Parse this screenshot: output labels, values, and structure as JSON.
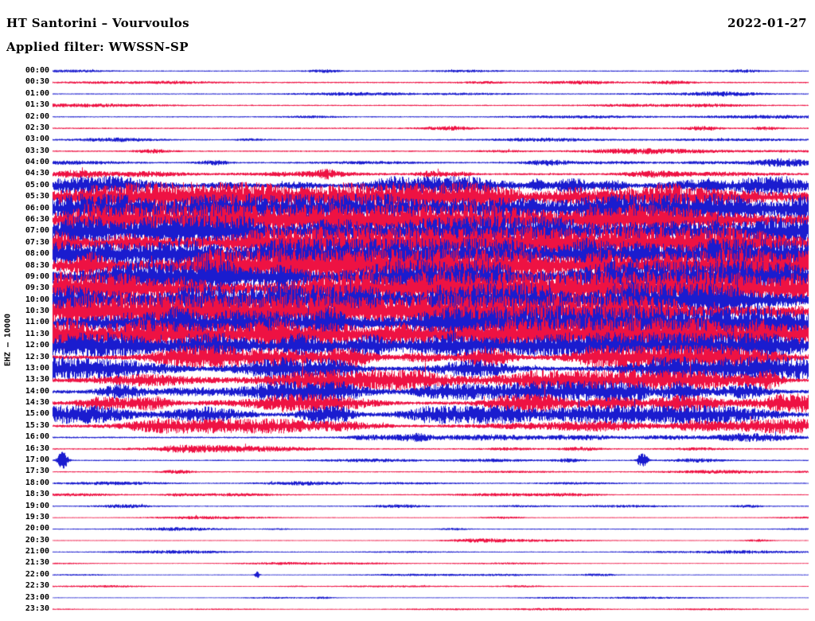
{
  "header": {
    "title": "HT Santorini – Vourvoulos",
    "date": "2022-01-27",
    "filter_label": "Applied filter: WWSSN-SP"
  },
  "y_axis_label": "EHZ – 10000",
  "colors": {
    "blue": "#1a1ccf",
    "red": "#ee1243",
    "background": "#ffffff",
    "text": "#000000"
  },
  "chart_data": {
    "type": "line",
    "subtype": "helicorder-seismogram",
    "title": "HT Santorini – Vourvoulos",
    "date": "2022-01-27",
    "filter": "WWSSN-SP",
    "y_axis_label": "EHZ – 10000",
    "row_interval_minutes": 30,
    "trace_colors_alternate": [
      "blue",
      "red"
    ],
    "amplitude_units": "relative peak half-amplitude (px), estimated from pixels",
    "rows": [
      {
        "t": "00:00",
        "c": "b",
        "a": 2.2
      },
      {
        "t": "00:30",
        "c": "r",
        "a": 2.8
      },
      {
        "t": "01:00",
        "c": "b",
        "a": 2.2
      },
      {
        "t": "01:30",
        "c": "r",
        "a": 2.4
      },
      {
        "t": "02:00",
        "c": "b",
        "a": 2.2
      },
      {
        "t": "02:30",
        "c": "r",
        "a": 2.8
      },
      {
        "t": "03:00",
        "c": "b",
        "a": 2.4
      },
      {
        "t": "03:30",
        "c": "r",
        "a": 2.8
      },
      {
        "t": "04:00",
        "c": "b",
        "a": 3.2
      },
      {
        "t": "04:30",
        "c": "r",
        "a": 4.5
      },
      {
        "t": "05:00",
        "c": "b",
        "a": 7,
        "ev": [
          [
            0.64,
            9,
            8
          ],
          [
            0.87,
            10,
            8
          ],
          [
            0.95,
            9,
            6
          ]
        ]
      },
      {
        "t": "05:30",
        "c": "r",
        "a": 11
      },
      {
        "t": "06:00",
        "c": "b",
        "a": 11
      },
      {
        "t": "06:30",
        "c": "r",
        "a": 12
      },
      {
        "t": "07:00",
        "c": "b",
        "a": 12
      },
      {
        "t": "07:30",
        "c": "r",
        "a": 12
      },
      {
        "t": "08:00",
        "c": "b",
        "a": 12
      },
      {
        "t": "08:30",
        "c": "r",
        "a": 13
      },
      {
        "t": "09:00",
        "c": "b",
        "a": 13
      },
      {
        "t": "09:30",
        "c": "r",
        "a": 13
      },
      {
        "t": "10:00",
        "c": "b",
        "a": 13
      },
      {
        "t": "10:30",
        "c": "r",
        "a": 13
      },
      {
        "t": "11:00",
        "c": "b",
        "a": 13
      },
      {
        "t": "11:30",
        "c": "r",
        "a": 13
      },
      {
        "t": "12:00",
        "c": "b",
        "a": 10
      },
      {
        "t": "12:30",
        "c": "r",
        "a": 9
      },
      {
        "t": "13:00",
        "c": "b",
        "a": 9
      },
      {
        "t": "13:30",
        "c": "r",
        "a": 8
      },
      {
        "t": "14:00",
        "c": "b",
        "a": 8
      },
      {
        "t": "14:30",
        "c": "r",
        "a": 7
      },
      {
        "t": "15:00",
        "c": "b",
        "a": 7
      },
      {
        "t": "15:30",
        "c": "r",
        "a": 5.5
      },
      {
        "t": "16:00",
        "c": "b",
        "a": 3.5
      },
      {
        "t": "16:30",
        "c": "r",
        "a": 3
      },
      {
        "t": "17:00",
        "c": "b",
        "a": 2.6,
        "ev": [
          [
            0.013,
            12,
            5
          ],
          [
            0.78,
            10,
            5
          ]
        ]
      },
      {
        "t": "17:30",
        "c": "r",
        "a": 2.2
      },
      {
        "t": "18:00",
        "c": "b",
        "a": 2.2
      },
      {
        "t": "18:30",
        "c": "r",
        "a": 1.8
      },
      {
        "t": "19:00",
        "c": "b",
        "a": 2.2
      },
      {
        "t": "19:30",
        "c": "r",
        "a": 1.4
      },
      {
        "t": "20:00",
        "c": "b",
        "a": 1.8
      },
      {
        "t": "20:30",
        "c": "r",
        "a": 1.4
      },
      {
        "t": "21:00",
        "c": "b",
        "a": 1.8
      },
      {
        "t": "21:30",
        "c": "r",
        "a": 1.3
      },
      {
        "t": "22:00",
        "c": "b",
        "a": 1.4,
        "ev": [
          [
            0.27,
            6,
            2
          ]
        ]
      },
      {
        "t": "22:30",
        "c": "r",
        "a": 1.3
      },
      {
        "t": "23:00",
        "c": "b",
        "a": 1.1
      },
      {
        "t": "23:30",
        "c": "r",
        "a": 1.2
      }
    ]
  }
}
